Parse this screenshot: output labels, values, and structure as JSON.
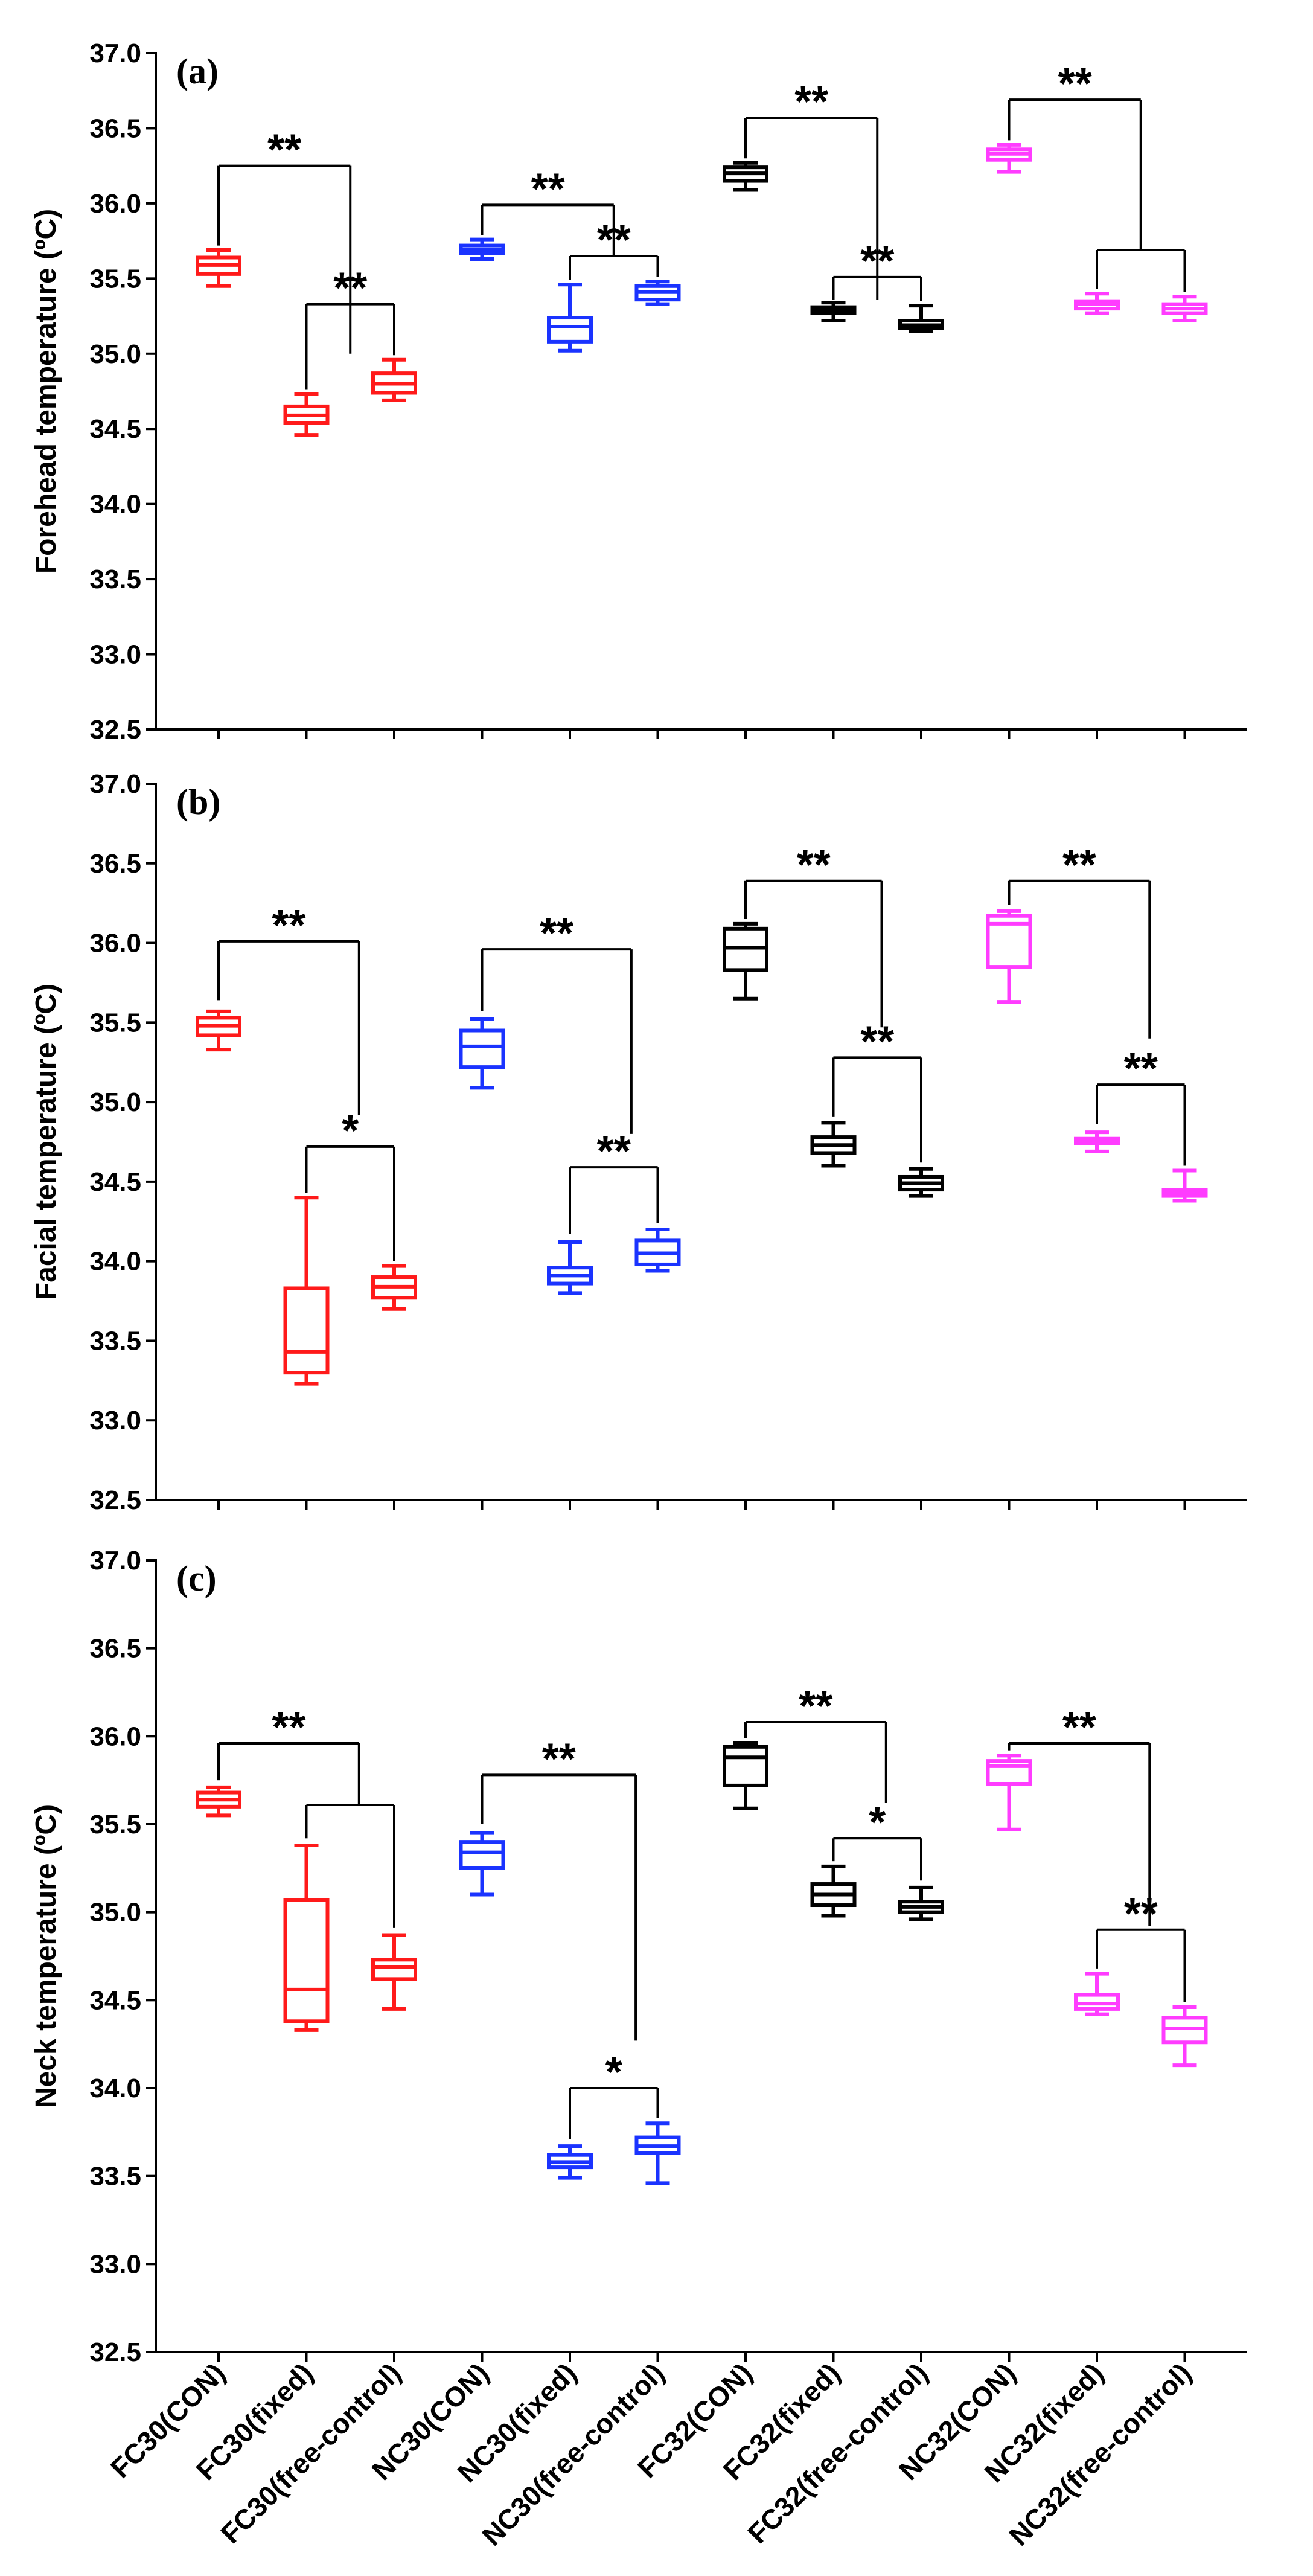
{
  "colors": {
    "FC30": "#ff1a1a",
    "NC30": "#1a33ff",
    "FC32": "#000000",
    "NC32": "#ff3cff",
    "axis": "#000000"
  },
  "chart_data": {
    "type": "boxplot",
    "categories": [
      "FC30(CON)",
      "FC30(fixed)",
      "FC30(free-control)",
      "NC30(CON)",
      "NC30(fixed)",
      "NC30(free-control)",
      "FC32(CON)",
      "FC32(fixed)",
      "FC32(free-control)",
      "NC32(CON)",
      "NC32(fixed)",
      "NC32(free-control)"
    ],
    "groups": [
      "FC30",
      "FC30",
      "FC30",
      "NC30",
      "NC30",
      "NC30",
      "FC32",
      "FC32",
      "FC32",
      "NC32",
      "NC32",
      "NC32"
    ],
    "ylim": [
      32.5,
      37.0
    ],
    "yticks": [
      "32.5",
      "33.0",
      "33.5",
      "34.0",
      "34.5",
      "35.0",
      "35.5",
      "36.0",
      "36.5",
      "37.0"
    ],
    "panels": [
      {
        "label": "(a)",
        "ylabel": "Forehead temperature (ºC)",
        "boxes": [
          {
            "min": 35.45,
            "q1": 35.53,
            "median": 35.59,
            "q3": 35.64,
            "max": 35.69
          },
          {
            "min": 34.46,
            "q1": 34.54,
            "median": 34.59,
            "q3": 34.65,
            "max": 34.73
          },
          {
            "min": 34.69,
            "q1": 34.74,
            "median": 34.8,
            "q3": 34.87,
            "max": 34.96
          },
          {
            "min": 35.63,
            "q1": 35.67,
            "median": 35.69,
            "q3": 35.72,
            "max": 35.76
          },
          {
            "min": 35.02,
            "q1": 35.08,
            "median": 35.18,
            "q3": 35.24,
            "max": 35.46
          },
          {
            "min": 35.33,
            "q1": 35.36,
            "median": 35.41,
            "q3": 35.45,
            "max": 35.48
          },
          {
            "min": 36.09,
            "q1": 36.15,
            "median": 36.2,
            "q3": 36.24,
            "max": 36.27
          },
          {
            "min": 35.22,
            "q1": 35.27,
            "median": 35.29,
            "q3": 35.31,
            "max": 35.34
          },
          {
            "min": 35.15,
            "q1": 35.17,
            "median": 35.19,
            "q3": 35.22,
            "max": 35.32
          },
          {
            "min": 36.21,
            "q1": 36.29,
            "median": 36.33,
            "q3": 36.36,
            "max": 36.39
          },
          {
            "min": 35.27,
            "q1": 35.3,
            "median": 35.33,
            "q3": 35.35,
            "max": 35.4
          },
          {
            "min": 35.22,
            "q1": 35.27,
            "median": 35.3,
            "q3": 35.33,
            "max": 35.38
          }
        ],
        "significance": [
          {
            "type": "pair",
            "from": 0,
            "to": 1.5,
            "y": 36.25,
            "text": "**",
            "left_leg": 35.72,
            "right_leg": 35.0
          },
          {
            "type": "pair",
            "from": 1,
            "to": 2,
            "y": 35.33,
            "text": "**",
            "left_leg": 34.76,
            "right_leg": 34.99
          },
          {
            "type": "pair",
            "from": 3,
            "to": 4.5,
            "y": 35.99,
            "text": "**",
            "left_leg": 35.79,
            "right_leg": 35.65
          },
          {
            "type": "pair",
            "from": 4,
            "to": 5,
            "y": 35.65,
            "text": "**",
            "left_leg": 35.49,
            "right_leg": 35.51
          },
          {
            "type": "pair",
            "from": 6,
            "to": 7.5,
            "y": 36.57,
            "text": "**",
            "left_leg": 36.3,
            "right_leg": 35.36
          },
          {
            "type": "pair",
            "from": 7,
            "to": 8,
            "y": 35.51,
            "text": "**",
            "left_leg": 35.36,
            "right_leg": 35.35
          },
          {
            "type": "pair",
            "from": 9,
            "to": 10.5,
            "y": 36.69,
            "text": "**",
            "left_leg": 36.42,
            "right_leg": 35.69
          },
          {
            "type": "pair",
            "from": 10,
            "to": 11,
            "y": 35.69,
            "text": "",
            "left_leg": 35.43,
            "right_leg": 35.41
          }
        ]
      },
      {
        "label": "(b)",
        "ylabel": "Facial temperature (ºC)",
        "boxes": [
          {
            "min": 35.33,
            "q1": 35.42,
            "median": 35.48,
            "q3": 35.53,
            "max": 35.57
          },
          {
            "min": 33.23,
            "q1": 33.3,
            "median": 33.43,
            "q3": 33.83,
            "max": 34.4
          },
          {
            "min": 33.7,
            "q1": 33.77,
            "median": 33.84,
            "q3": 33.9,
            "max": 33.97
          },
          {
            "min": 35.09,
            "q1": 35.22,
            "median": 35.35,
            "q3": 35.45,
            "max": 35.52
          },
          {
            "min": 33.8,
            "q1": 33.86,
            "median": 33.91,
            "q3": 33.96,
            "max": 34.12
          },
          {
            "min": 33.94,
            "q1": 33.98,
            "median": 34.05,
            "q3": 34.13,
            "max": 34.2
          },
          {
            "min": 35.65,
            "q1": 35.83,
            "median": 35.97,
            "q3": 36.09,
            "max": 36.12
          },
          {
            "min": 34.6,
            "q1": 34.68,
            "median": 34.73,
            "q3": 34.78,
            "max": 34.87
          },
          {
            "min": 34.41,
            "q1": 34.45,
            "median": 34.49,
            "q3": 34.53,
            "max": 34.58
          },
          {
            "min": 35.63,
            "q1": 35.85,
            "median": 36.12,
            "q3": 36.17,
            "max": 36.2
          },
          {
            "min": 34.69,
            "q1": 34.74,
            "median": 34.75,
            "q3": 34.77,
            "max": 34.81
          },
          {
            "min": 34.38,
            "q1": 34.41,
            "median": 34.43,
            "q3": 34.45,
            "max": 34.57
          }
        ],
        "significance": [
          {
            "type": "pair",
            "from": 0,
            "to": 1.6,
            "y": 36.01,
            "text": "**",
            "left_leg": 35.64,
            "right_leg": 34.92
          },
          {
            "type": "pair",
            "from": 1,
            "to": 2,
            "y": 34.72,
            "text": "*",
            "left_leg": 34.43,
            "right_leg": 34.0
          },
          {
            "type": "pair",
            "from": 3,
            "to": 4.7,
            "y": 35.96,
            "text": "**",
            "left_leg": 35.57,
            "right_leg": 34.8
          },
          {
            "type": "pair",
            "from": 4,
            "to": 5,
            "y": 34.59,
            "text": "**",
            "left_leg": 34.17,
            "right_leg": 34.24
          },
          {
            "type": "pair",
            "from": 6,
            "to": 7.55,
            "y": 36.39,
            "text": "**",
            "left_leg": 36.15,
            "right_leg": 35.47
          },
          {
            "type": "pair",
            "from": 7,
            "to": 8,
            "y": 35.28,
            "text": "**",
            "left_leg": 34.91,
            "right_leg": 34.62
          },
          {
            "type": "pair",
            "from": 9,
            "to": 10.6,
            "y": 36.39,
            "text": "**",
            "left_leg": 36.24,
            "right_leg": 35.4
          },
          {
            "type": "pair",
            "from": 10,
            "to": 11,
            "y": 35.11,
            "text": "**",
            "left_leg": 34.86,
            "right_leg": 34.6
          }
        ]
      },
      {
        "label": "(c)",
        "ylabel": "Neck temperature (ºC)",
        "boxes": [
          {
            "min": 35.55,
            "q1": 35.6,
            "median": 35.64,
            "q3": 35.68,
            "max": 35.71
          },
          {
            "min": 34.33,
            "q1": 34.38,
            "median": 34.56,
            "q3": 35.07,
            "max": 35.38
          },
          {
            "min": 34.45,
            "q1": 34.62,
            "median": 34.69,
            "q3": 34.73,
            "max": 34.87
          },
          {
            "min": 35.1,
            "q1": 35.25,
            "median": 35.34,
            "q3": 35.4,
            "max": 35.45
          },
          {
            "min": 33.49,
            "q1": 33.55,
            "median": 33.58,
            "q3": 33.62,
            "max": 33.67
          },
          {
            "min": 33.46,
            "q1": 33.63,
            "median": 33.67,
            "q3": 33.72,
            "max": 33.8
          },
          {
            "min": 35.59,
            "q1": 35.72,
            "median": 35.88,
            "q3": 35.94,
            "max": 35.96
          },
          {
            "min": 34.98,
            "q1": 35.04,
            "median": 35.1,
            "q3": 35.16,
            "max": 35.26
          },
          {
            "min": 34.96,
            "q1": 35.0,
            "median": 35.03,
            "q3": 35.06,
            "max": 35.14
          },
          {
            "min": 35.47,
            "q1": 35.73,
            "median": 35.83,
            "q3": 35.86,
            "max": 35.89
          },
          {
            "min": 34.42,
            "q1": 34.45,
            "median": 34.48,
            "q3": 34.53,
            "max": 34.65
          },
          {
            "min": 34.13,
            "q1": 34.26,
            "median": 34.34,
            "q3": 34.4,
            "max": 34.46
          }
        ],
        "significance": [
          {
            "type": "pair",
            "from": 0,
            "to": 1.6,
            "y": 35.96,
            "text": "**",
            "left_leg": 35.75,
            "right_leg": 35.61
          },
          {
            "type": "bracket2",
            "from": 1,
            "to": 2,
            "y": 35.61,
            "text": "",
            "left_leg": 35.42,
            "right_leg": 34.91
          },
          {
            "type": "pair",
            "from": 3,
            "to": 4.75,
            "y": 35.78,
            "text": "**",
            "left_leg": 35.5,
            "right_leg": 34.27
          },
          {
            "type": "pair",
            "from": 4,
            "to": 5,
            "y": 34.0,
            "text": "*",
            "left_leg": 33.71,
            "right_leg": 33.83
          },
          {
            "type": "pair",
            "from": 6,
            "to": 7.6,
            "y": 36.08,
            "text": "**",
            "left_leg": 35.99,
            "right_leg": 35.62
          },
          {
            "type": "pair",
            "from": 7,
            "to": 8,
            "y": 35.42,
            "text": "*",
            "left_leg": 35.29,
            "right_leg": 35.18
          },
          {
            "type": "pair",
            "from": 9,
            "to": 10.6,
            "y": 35.96,
            "text": "**",
            "left_leg": 35.92,
            "right_leg": 34.92
          },
          {
            "type": "pair",
            "from": 10,
            "to": 11,
            "y": 34.9,
            "text": "**",
            "left_leg": 34.68,
            "right_leg": 34.49
          }
        ]
      }
    ]
  }
}
